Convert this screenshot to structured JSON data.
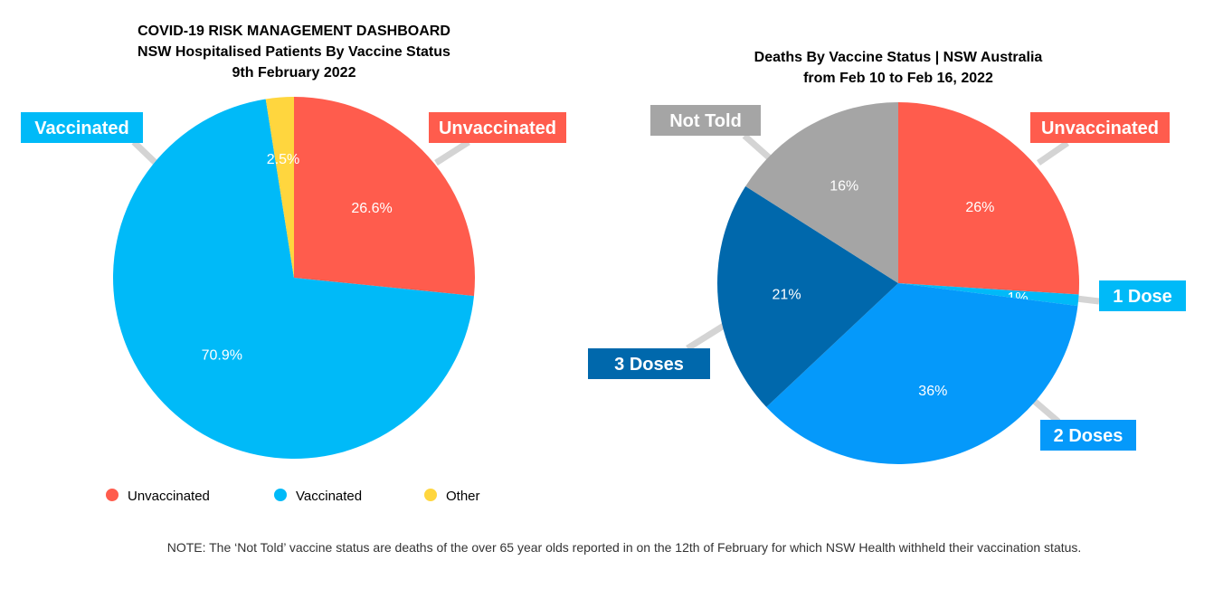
{
  "charts": [
    {
      "title_lines": [
        "COVID-19 RISK MANAGEMENT DASHBOARD",
        "NSW Hospitalised Patients By Vaccine Status",
        "9th February 2022"
      ],
      "legend": [
        {
          "label": "Unvaccinated",
          "color": "#FF5C4D"
        },
        {
          "label": "Vaccinated",
          "color": "#00BAF8"
        },
        {
          "label": "Other",
          "color": "#FFD63E"
        }
      ]
    },
    {
      "title_lines": [
        "Deaths By Vaccine Status | NSW Australia",
        "from Feb 10 to Feb 16, 2022"
      ]
    }
  ],
  "chart_data": [
    {
      "type": "pie",
      "title": "COVID-19 RISK MANAGEMENT DASHBOARD / NSW Hospitalised Patients By Vaccine Status / 9th February 2022",
      "slices": [
        {
          "label": "Unvaccinated",
          "value": 26.6,
          "display": "26.6%",
          "color": "#FF5C4D",
          "callout": "Unvaccinated"
        },
        {
          "label": "Vaccinated",
          "value": 70.9,
          "display": "70.9%",
          "color": "#00BAF8",
          "callout": "Vaccinated"
        },
        {
          "label": "Other",
          "value": 2.5,
          "display": "2.5%",
          "color": "#FFD63E",
          "callout": ""
        }
      ],
      "legend_position": "bottom"
    },
    {
      "type": "pie",
      "title": "Deaths By Vaccine Status | NSW Australia / from Feb 10 to Feb 16, 2022",
      "slices": [
        {
          "label": "Unvaccinated",
          "value": 26,
          "display": "26%",
          "color": "#FF5C4D",
          "callout": "Unvaccinated"
        },
        {
          "label": "1 Dose",
          "value": 1,
          "display": "1%",
          "color": "#00BAF8",
          "callout": "1 Dose"
        },
        {
          "label": "2 Doses",
          "value": 36,
          "display": "36%",
          "color": "#0599FA",
          "callout": "2 Doses"
        },
        {
          "label": "3 Doses",
          "value": 21,
          "display": "21%",
          "color": "#0068AC",
          "callout": "3 Doses"
        },
        {
          "label": "Not Told",
          "value": 16,
          "display": "16%",
          "color": "#A5A5A5",
          "callout": "Not Told"
        }
      ],
      "legend_position": "none"
    }
  ],
  "note": "NOTE: The ‘Not Told’ vaccine status are deaths of the over 65 year olds reported in on the 12th of February for which NSW Health withheld their vaccination status."
}
